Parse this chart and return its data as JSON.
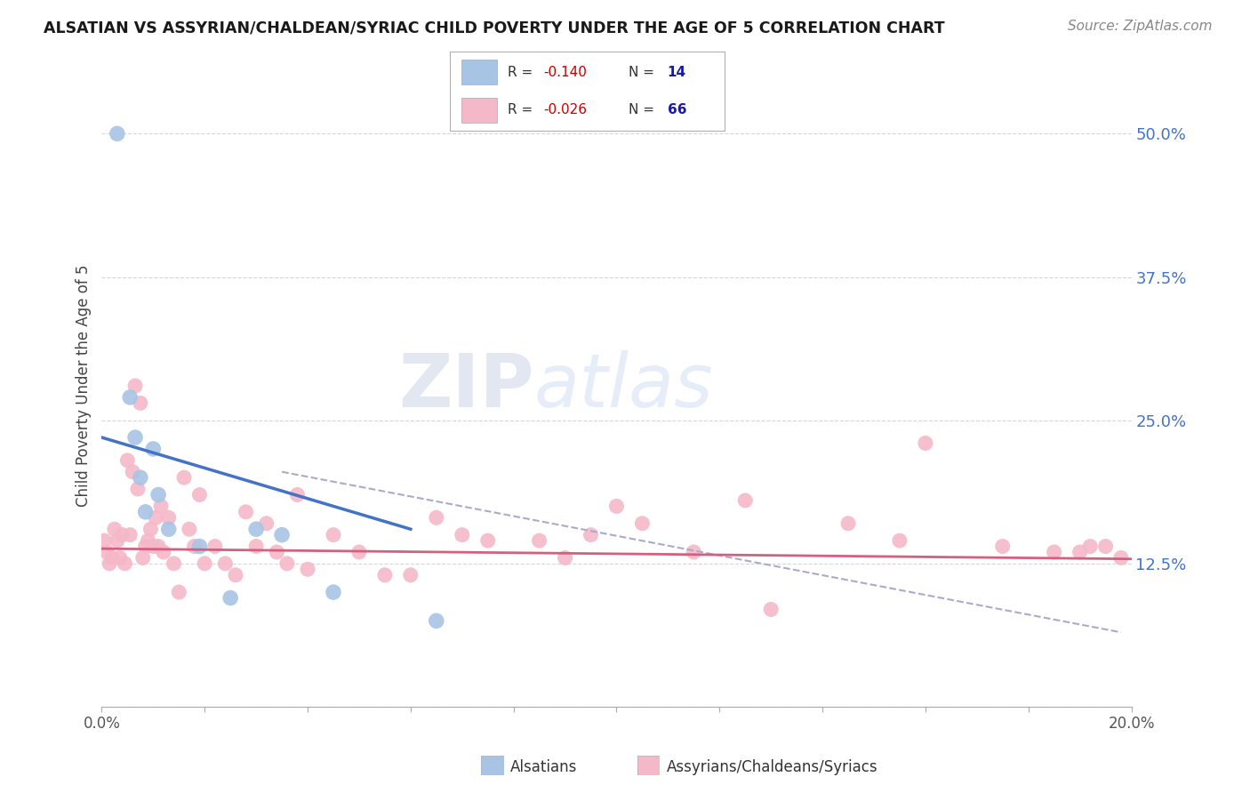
{
  "title": "ALSATIAN VS ASSYRIAN/CHALDEAN/SYRIAC CHILD POVERTY UNDER THE AGE OF 5 CORRELATION CHART",
  "source": "Source: ZipAtlas.com",
  "ylabel": "Child Poverty Under the Age of 5",
  "xlim": [
    0.0,
    20.0
  ],
  "ylim": [
    0.0,
    56.0
  ],
  "yticks": [
    0.0,
    12.5,
    25.0,
    37.5,
    50.0
  ],
  "ytick_labels": [
    "",
    "12.5%",
    "25.0%",
    "37.5%",
    "50.0%"
  ],
  "alsatian_color": "#a8c4e5",
  "assyrian_color": "#f5b8c8",
  "trendline_alsatian_color": "#4472c4",
  "trendline_assyrian_color": "#d46080",
  "dashed_line_color": "#aaaacc",
  "watermark_zip": "ZIP",
  "watermark_atlas": "atlas",
  "background_color": "#ffffff",
  "grid_color": "#cccccc",
  "label_color": "#4472c4",
  "r_value_color": "#cc0000",
  "n_value_color": "#1a1aaa",
  "alsatian_scatter_x": [
    0.3,
    0.55,
    0.65,
    0.75,
    0.85,
    1.0,
    1.1,
    1.3,
    1.9,
    2.5,
    3.0,
    3.5,
    4.5,
    6.5
  ],
  "alsatian_scatter_y": [
    50.0,
    27.0,
    23.5,
    20.0,
    17.0,
    22.5,
    18.5,
    15.5,
    14.0,
    9.5,
    15.5,
    15.0,
    10.0,
    7.5
  ],
  "assyrian_scatter_x": [
    0.05,
    0.1,
    0.15,
    0.2,
    0.25,
    0.3,
    0.35,
    0.4,
    0.45,
    0.5,
    0.55,
    0.6,
    0.65,
    0.7,
    0.75,
    0.8,
    0.85,
    0.9,
    0.95,
    1.0,
    1.05,
    1.1,
    1.15,
    1.2,
    1.3,
    1.4,
    1.5,
    1.6,
    1.7,
    1.8,
    1.9,
    2.0,
    2.2,
    2.4,
    2.6,
    2.8,
    3.0,
    3.2,
    3.4,
    3.6,
    3.8,
    4.0,
    4.5,
    5.0,
    5.5,
    6.0,
    6.5,
    7.0,
    7.5,
    8.5,
    9.0,
    9.5,
    10.5,
    11.5,
    12.5,
    14.5,
    15.5,
    16.0,
    17.5,
    18.5,
    19.0,
    19.2,
    19.5,
    19.8,
    10.0,
    13.0
  ],
  "assyrian_scatter_y": [
    14.5,
    13.5,
    12.5,
    13.0,
    15.5,
    14.5,
    13.0,
    15.0,
    12.5,
    21.5,
    15.0,
    20.5,
    28.0,
    19.0,
    26.5,
    13.0,
    14.0,
    14.5,
    15.5,
    14.0,
    16.5,
    14.0,
    17.5,
    13.5,
    16.5,
    12.5,
    10.0,
    20.0,
    15.5,
    14.0,
    18.5,
    12.5,
    14.0,
    12.5,
    11.5,
    17.0,
    14.0,
    16.0,
    13.5,
    12.5,
    18.5,
    12.0,
    15.0,
    13.5,
    11.5,
    11.5,
    16.5,
    15.0,
    14.5,
    14.5,
    13.0,
    15.0,
    16.0,
    13.5,
    18.0,
    16.0,
    14.5,
    23.0,
    14.0,
    13.5,
    13.5,
    14.0,
    14.0,
    13.0,
    17.5,
    8.5
  ],
  "alsatian_trend_x": [
    0.0,
    6.0
  ],
  "alsatian_trend_y": [
    23.5,
    15.5
  ],
  "assyrian_trend_x": [
    0.0,
    20.0
  ],
  "assyrian_trend_y": [
    13.8,
    12.9
  ],
  "dashed_trend_x": [
    3.5,
    19.8
  ],
  "dashed_trend_y": [
    20.5,
    6.5
  ],
  "legend_label_alsatian": "Alsatians",
  "legend_label_assyrian": "Assyrians/Chaldeans/Syriacs"
}
